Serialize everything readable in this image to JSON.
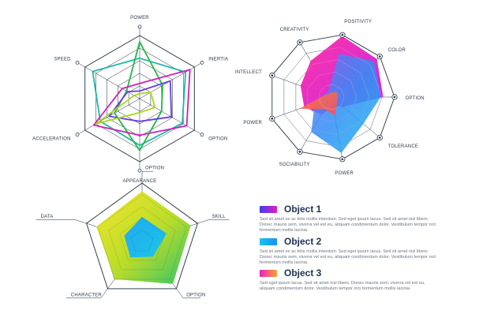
{
  "chart_data": [
    {
      "type": "radar",
      "axes": [
        "POWER",
        "INERTIA",
        "OPTION",
        "APPEARANCE",
        "ACCELERATION",
        "SPEED"
      ],
      "rmax": 5,
      "grid": true,
      "series": [
        {
          "values": [
            3.2,
            4.2,
            3.9,
            3.7,
            3.6,
            4.3
          ],
          "color": "#1fb8a8"
        },
        {
          "values": [
            4.5,
            2.1,
            2.0,
            4.1,
            2.3,
            1.2
          ],
          "color": "#22b84a"
        },
        {
          "values": [
            1.2,
            4.6,
            4.3,
            2.9,
            4.2,
            1.6
          ],
          "color": "#d21fb8"
        },
        {
          "values": [
            0.6,
            2.8,
            2.9,
            1.8,
            2.8,
            1.1
          ],
          "color": "#6a3de0"
        },
        {
          "values": [
            0.4,
            1.0,
            1.4,
            1.1,
            4.0,
            0.5
          ],
          "color": "#a7d81c"
        }
      ]
    },
    {
      "type": "radar",
      "axes": [
        "POSITIVITY",
        "COLOR",
        "OPTION",
        "TOLERANCE",
        "POWER",
        "SOCIABILITY",
        "POWER",
        "INTELLECT",
        "CREATIVITY"
      ],
      "rmax": 5,
      "grid": true,
      "series": [
        {
          "values": [
            4.9,
            4.7,
            4.1,
            1.2,
            0.8,
            1.6,
            2.3,
            2.6,
            3.3
          ],
          "color": "#ec1ec1"
        },
        {
          "values": [
            3.5,
            4.4,
            3.9,
            3.3,
            4.5,
            3.2,
            1.4,
            0.6,
            0.5
          ],
          "color": "#1f9ef5"
        },
        {
          "values": [
            0.4,
            0.6,
            0.5,
            0.6,
            1.5,
            1.1,
            2.7,
            0.5,
            0.3
          ],
          "color": "#f26a4a"
        }
      ]
    },
    {
      "type": "radar",
      "axes": [
        "OPTION",
        "SKILL",
        "OPTION",
        "CHARACTER",
        "DATA"
      ],
      "rmax": 5,
      "grid": true,
      "series": [
        {
          "values": [
            4.3,
            4.4,
            4.5,
            4.0,
            4.1
          ],
          "color": "#f2e030"
        },
        {
          "values": [
            2.1,
            2.2,
            1.6,
            1.7,
            1.6
          ],
          "color": "#19b5ea"
        }
      ]
    }
  ],
  "legend": [
    {
      "title": "Object 1",
      "text": "Sed sit amet ex ac felis mollis interdum. Sed eget ipsum lacus. Sed sit amet nisl libero. Donec mauris sem, viverra vel est eu, aliquam condimentum dolor. Vestibulum tempor orci fermentum mollis lacinia.",
      "color_from": "#3b3ff0",
      "color_to": "#e01fc0"
    },
    {
      "title": "Object 2",
      "text": "Sed sit amet ex ac felis mollis interdum. Sed eget ipsum lacus. Sed sit amet nisl libero. Donec mauris sem, viverra vel est eu, aliquam condimentum dolor. Vestibulum tempor orci fermentum mollis lacinia.",
      "color_from": "#18c4f0",
      "color_to": "#1d8ff2"
    },
    {
      "title": "Object 3",
      "text": "Sed eget ipsum lacus. Sed sit amet nisl libero. Donec mauris sem, viverra vel est eu, aliquam condimentum dolor. Vestibulum tempor orci fermentum mollis lacinia.",
      "color_from": "#ef1ec5",
      "color_to": "#f7a32a"
    }
  ]
}
